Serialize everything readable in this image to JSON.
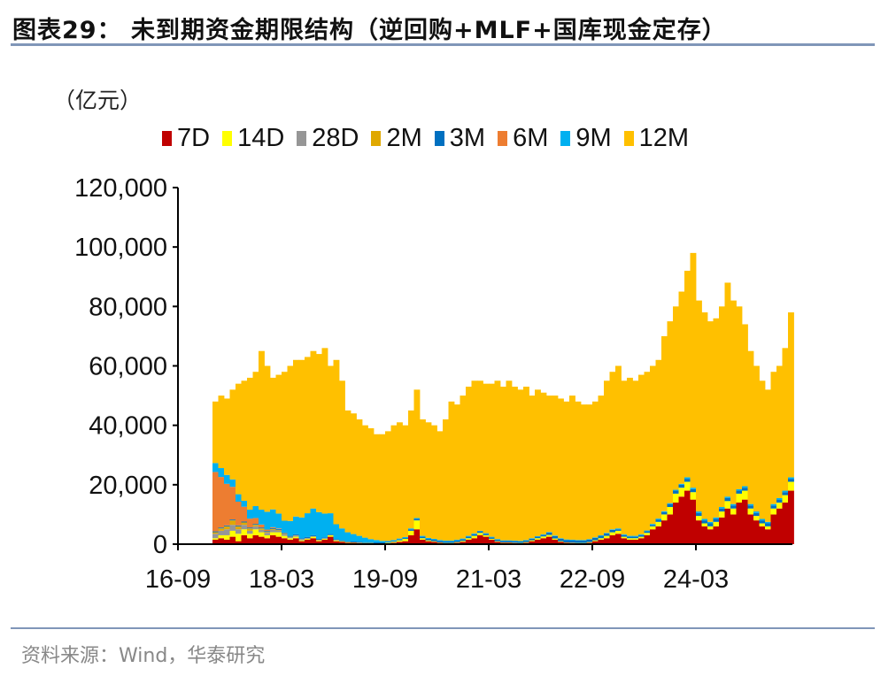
{
  "title": "图表29：  未到期资金期限结构（逆回购+MLF+国库现金定存）",
  "source": "资料来源：Wind，华泰研究",
  "chart_data": {
    "type": "bar",
    "stacked": true,
    "unit_label": "（亿元）",
    "ylim": [
      0,
      120000
    ],
    "y_ticks": [
      0,
      20000,
      40000,
      60000,
      80000,
      100000,
      120000
    ],
    "y_tick_labels": [
      "0",
      "20,000",
      "40,000",
      "60,000",
      "80,000",
      "100,000",
      "120,000"
    ],
    "x_ticks": [
      "2016-09",
      "2018-03",
      "2019-09",
      "2021-03",
      "2022-09",
      "2024-03"
    ],
    "x_tick_labels": [
      "16-09",
      "18-03",
      "19-09",
      "21-03",
      "22-09",
      "24-03"
    ],
    "grid": false,
    "legend_position": "top",
    "categories": [
      "2017-03",
      "2017-04",
      "2017-05",
      "2017-06",
      "2017-07",
      "2017-08",
      "2017-09",
      "2017-10",
      "2017-11",
      "2017-12",
      "2018-01",
      "2018-02",
      "2018-03",
      "2018-04",
      "2018-05",
      "2018-06",
      "2018-07",
      "2018-08",
      "2018-09",
      "2018-10",
      "2018-11",
      "2018-12",
      "2019-01",
      "2019-02",
      "2019-03",
      "2019-04",
      "2019-05",
      "2019-06",
      "2019-07",
      "2019-08",
      "2019-09",
      "2019-10",
      "2019-11",
      "2019-12",
      "2020-01",
      "2020-02",
      "2020-03",
      "2020-04",
      "2020-05",
      "2020-06",
      "2020-07",
      "2020-08",
      "2020-09",
      "2020-10",
      "2020-11",
      "2020-12",
      "2021-01",
      "2021-02",
      "2021-03",
      "2021-04",
      "2021-05",
      "2021-06",
      "2021-07",
      "2021-08",
      "2021-09",
      "2021-10",
      "2021-11",
      "2021-12",
      "2022-01",
      "2022-02",
      "2022-03",
      "2022-04",
      "2022-05",
      "2022-06",
      "2022-07",
      "2022-08",
      "2022-09",
      "2022-10",
      "2022-11",
      "2022-12",
      "2023-01",
      "2023-02",
      "2023-03",
      "2023-04",
      "2023-05",
      "2023-06",
      "2023-07",
      "2023-08",
      "2023-09",
      "2023-10",
      "2023-11",
      "2023-12",
      "2024-01",
      "2024-02",
      "2024-03",
      "2024-04",
      "2024-05",
      "2024-06",
      "2024-07",
      "2024-08",
      "2024-09",
      "2024-10",
      "2024-11",
      "2024-12",
      "2025-01",
      "2025-02",
      "2025-03",
      "2025-04",
      "2025-05",
      "2025-06",
      "2025-07"
    ],
    "series": [
      {
        "name": "7D",
        "color": "#c00000",
        "values": [
          1500,
          2000,
          1500,
          2500,
          1000,
          3000,
          2000,
          3000,
          2500,
          2000,
          3000,
          2500,
          2000,
          1500,
          2000,
          1000,
          1500,
          2000,
          1000,
          1500,
          2500,
          1000,
          800,
          500,
          500,
          400,
          300,
          300,
          200,
          200,
          300,
          500,
          800,
          1000,
          3000,
          5000,
          1500,
          1000,
          800,
          500,
          300,
          300,
          500,
          800,
          1500,
          2000,
          3000,
          2500,
          1500,
          800,
          500,
          500,
          400,
          300,
          500,
          1000,
          1500,
          2000,
          2500,
          1500,
          800,
          500,
          400,
          300,
          300,
          500,
          1000,
          1500,
          2000,
          3000,
          3500,
          2000,
          1500,
          1500,
          2000,
          3000,
          5000,
          6000,
          8000,
          10000,
          14000,
          16000,
          18000,
          15000,
          8000,
          6000,
          5000,
          6000,
          9000,
          12000,
          10000,
          14000,
          15000,
          10000,
          8000,
          6000,
          5000,
          10000,
          12000,
          14000,
          18000
        ]
      },
      {
        "name": "14D",
        "color": "#ffff00",
        "values": [
          500,
          1000,
          1500,
          2000,
          2500,
          2000,
          1500,
          2000,
          1500,
          1000,
          1000,
          1500,
          800,
          500,
          500,
          300,
          300,
          500,
          300,
          300,
          500,
          300,
          200,
          200,
          100,
          100,
          100,
          100,
          100,
          100,
          200,
          300,
          500,
          800,
          1500,
          3000,
          500,
          300,
          200,
          100,
          100,
          100,
          200,
          300,
          500,
          800,
          800,
          500,
          300,
          200,
          100,
          100,
          100,
          100,
          200,
          300,
          500,
          600,
          600,
          400,
          200,
          100,
          100,
          100,
          100,
          200,
          300,
          500,
          800,
          1000,
          1000,
          500,
          500,
          500,
          500,
          800,
          1000,
          1500,
          2000,
          2500,
          3000,
          3000,
          3000,
          2500,
          1500,
          1000,
          1000,
          1500,
          2000,
          2500,
          2000,
          3000,
          3000,
          2000,
          1500,
          1000,
          1000,
          2000,
          2000,
          2500,
          3000
        ]
      },
      {
        "name": "28D",
        "color": "#969696",
        "values": [
          1500,
          1500,
          2000,
          2000,
          1500,
          1500,
          1000,
          1000,
          800,
          800,
          800,
          600,
          500,
          400,
          400,
          300,
          300,
          200,
          200,
          200,
          100,
          100,
          0,
          0,
          0,
          0,
          0,
          0,
          0,
          0,
          0,
          0,
          0,
          0,
          0,
          0,
          0,
          0,
          0,
          0,
          0,
          0,
          0,
          0,
          0,
          0,
          0,
          0,
          0,
          0,
          0,
          0,
          0,
          0,
          0,
          0,
          0,
          0,
          0,
          0,
          0,
          0,
          0,
          0,
          0,
          0,
          0,
          0,
          0,
          0,
          0,
          0,
          0,
          0,
          0,
          0,
          0,
          0,
          0,
          0,
          0,
          0,
          0,
          0,
          0,
          0,
          0,
          0,
          0,
          0,
          0,
          0,
          0,
          0,
          0,
          0,
          0,
          0,
          0,
          0,
          0
        ]
      },
      {
        "name": "2M",
        "color": "#e0a800",
        "values": [
          500,
          800,
          1000,
          1500,
          1000,
          800,
          800,
          500,
          500,
          300,
          300,
          200,
          200,
          100,
          100,
          100,
          0,
          0,
          0,
          0,
          0,
          0,
          0,
          0,
          0,
          0,
          0,
          0,
          0,
          0,
          0,
          0,
          0,
          0,
          0,
          0,
          0,
          0,
          0,
          0,
          0,
          0,
          0,
          0,
          0,
          0,
          0,
          0,
          0,
          0,
          0,
          0,
          0,
          0,
          0,
          0,
          0,
          0,
          0,
          0,
          0,
          0,
          0,
          0,
          0,
          0,
          0,
          0,
          0,
          0,
          0,
          0,
          0,
          0,
          0,
          0,
          0,
          0,
          0,
          0,
          0,
          0,
          0,
          0,
          0,
          0,
          0,
          0,
          0,
          0,
          0,
          0,
          0,
          0,
          0,
          0,
          0,
          0,
          0,
          0,
          0
        ]
      },
      {
        "name": "3M",
        "color": "#0070c0",
        "values": [
          300,
          300,
          300,
          300,
          300,
          300,
          300,
          300,
          300,
          300,
          300,
          300,
          300,
          300,
          300,
          300,
          300,
          300,
          300,
          300,
          300,
          300,
          300,
          300,
          300,
          300,
          300,
          300,
          300,
          300,
          300,
          300,
          300,
          300,
          500,
          500,
          500,
          500,
          500,
          500,
          500,
          500,
          500,
          500,
          500,
          500,
          500,
          500,
          500,
          500,
          500,
          500,
          500,
          500,
          500,
          500,
          500,
          500,
          800,
          800,
          800,
          800,
          800,
          800,
          800,
          800,
          800,
          800,
          800,
          800,
          500,
          500,
          500,
          500,
          500,
          500,
          500,
          800,
          800,
          1000,
          1000,
          1000,
          1000,
          1000,
          1000,
          1000,
          1000,
          1000,
          1000,
          1000,
          1000,
          1000,
          1000,
          1000,
          1000,
          1000,
          1000,
          1000,
          1000,
          1000,
          1000
        ]
      },
      {
        "name": "6M",
        "color": "#ed7d31",
        "values": [
          20000,
          17000,
          14000,
          11000,
          8000,
          5000,
          3000,
          2000,
          1000,
          500,
          300,
          200,
          100,
          0,
          0,
          0,
          0,
          0,
          0,
          0,
          0,
          0,
          0,
          0,
          0,
          0,
          0,
          0,
          0,
          0,
          0,
          0,
          0,
          0,
          0,
          0,
          0,
          0,
          0,
          0,
          0,
          0,
          0,
          0,
          0,
          0,
          0,
          0,
          0,
          0,
          0,
          0,
          0,
          0,
          0,
          0,
          0,
          0,
          0,
          0,
          0,
          0,
          0,
          0,
          0,
          0,
          0,
          0,
          0,
          0,
          0,
          0,
          0,
          0,
          0,
          0,
          0,
          0,
          0,
          0,
          0,
          0,
          0,
          0,
          0,
          0,
          0,
          0,
          0,
          0,
          0,
          0,
          0,
          0,
          0,
          0,
          0,
          0,
          0,
          0,
          0
        ]
      },
      {
        "name": "9M",
        "color": "#00b0f0",
        "values": [
          3000,
          3000,
          3000,
          2500,
          2500,
          2000,
          3000,
          4000,
          5000,
          6000,
          6000,
          5000,
          4000,
          5000,
          6000,
          7000,
          8000,
          9000,
          9000,
          8000,
          7000,
          5000,
          4000,
          3000,
          2500,
          2000,
          1500,
          1000,
          800,
          500,
          300,
          300,
          300,
          300,
          300,
          300,
          300,
          300,
          300,
          300,
          300,
          300,
          300,
          300,
          300,
          300,
          200,
          200,
          200,
          200,
          200,
          200,
          200,
          200,
          200,
          200,
          200,
          200,
          200,
          200,
          200,
          200,
          200,
          200,
          200,
          200,
          200,
          200,
          200,
          200,
          300,
          300,
          300,
          300,
          300,
          300,
          300,
          300,
          300,
          300,
          300,
          300,
          500,
          500,
          500,
          500,
          500,
          500,
          500,
          500,
          500,
          500,
          500,
          500,
          500,
          500,
          500,
          500,
          500,
          500,
          500
        ]
      },
      {
        "name": "12M",
        "color": "#ffc000",
        "values": [
          20700,
          24400,
          25700,
          30200,
          37200,
          40400,
          44400,
          45200,
          53400,
          49100,
          44300,
          46700,
          50100,
          52200,
          52700,
          53000,
          52600,
          53000,
          53200,
          55700,
          49600,
          55300,
          49700,
          41000,
          40600,
          39200,
          37800,
          37300,
          35600,
          35900,
          36900,
          38600,
          39100,
          37600,
          39700,
          43200,
          39200,
          38900,
          38200,
          36600,
          40800,
          46800,
          45500,
          48100,
          50200,
          51400,
          50500,
          50300,
          51500,
          53300,
          51700,
          53700,
          51800,
          50900,
          51600,
          48000,
          49300,
          47700,
          45900,
          47100,
          47000,
          46400,
          48500,
          46600,
          45600,
          45300,
          45700,
          47000,
          51200,
          53000,
          54700,
          51700,
          53200,
          52200,
          53700,
          53400,
          53200,
          53400,
          58900,
          61200,
          61700,
          64700,
          69500,
          79000,
          71000,
          69500,
          67500,
          67000,
          67500,
          72000,
          68500,
          61500,
          54500,
          51500,
          49000,
          46500,
          44500,
          44500,
          44500,
          48000,
          55500
        ]
      }
    ]
  }
}
